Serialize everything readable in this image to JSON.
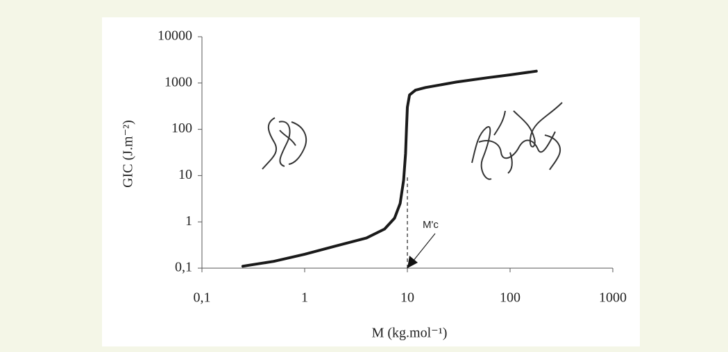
{
  "chart_data": {
    "type": "line",
    "log_x": true,
    "log_y": true,
    "x_label": "M (kg.mol⁻¹)",
    "y_label": "GIC (J.m⁻²)",
    "xlim": [
      0.1,
      1000
    ],
    "ylim": [
      0.1,
      10000
    ],
    "xticks": [
      {
        "value": 0.1,
        "label": "0,1"
      },
      1,
      10,
      100,
      1000
    ],
    "yticks": [
      {
        "value": 0.1,
        "label": "0,1"
      },
      1,
      10,
      100,
      1000,
      10000
    ],
    "x": [
      0.25,
      0.5,
      1,
      2,
      4,
      6,
      7.5,
      8.5,
      9.2,
      9.6,
      9.8,
      10,
      10.5,
      12,
      15,
      30,
      60,
      100,
      180
    ],
    "series": [
      {
        "color": "#1a1a1a",
        "values": [
          0.11,
          0.14,
          0.2,
          0.3,
          0.45,
          0.7,
          1.2,
          2.5,
          8,
          30,
          100,
          300,
          550,
          700,
          800,
          1050,
          1300,
          1500,
          1800
        ]
      }
    ],
    "annotation": {
      "text": "M'c",
      "x": 10
    }
  }
}
